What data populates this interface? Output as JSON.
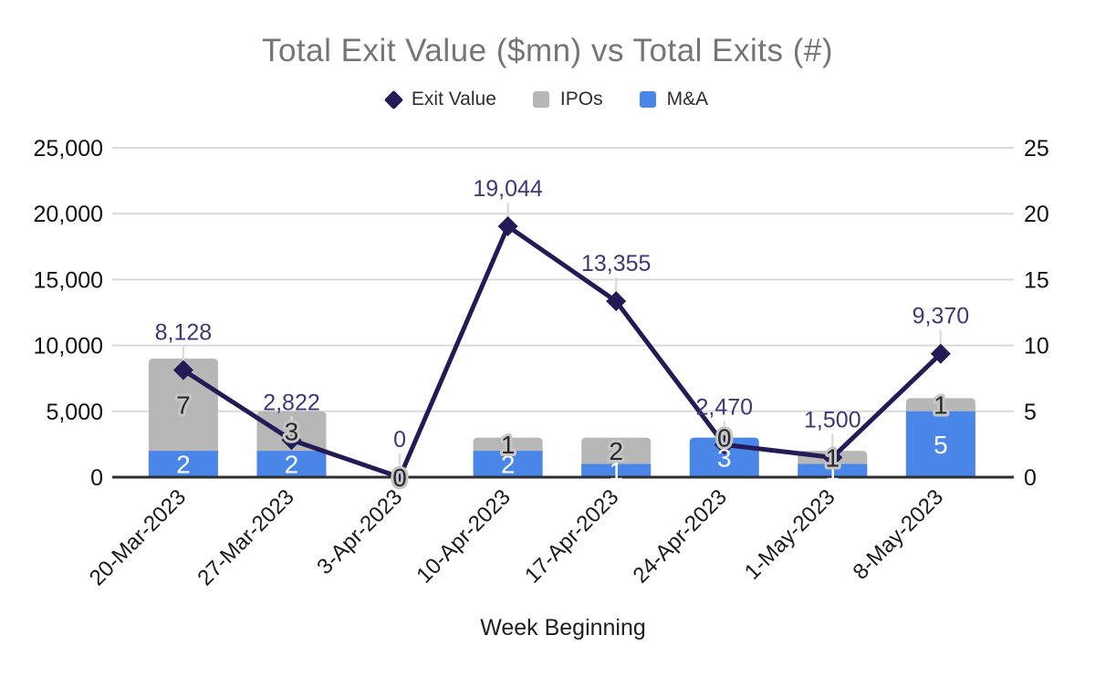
{
  "title": "Total Exit Value ($mn) vs Total Exits (#)",
  "legend": [
    {
      "label": "Exit Value",
      "marker": "diamond",
      "color": "#241A56"
    },
    {
      "label": "IPOs",
      "marker": "square",
      "color": "#B7B7B7"
    },
    {
      "label": "M&A",
      "marker": "square",
      "color": "#4A86E8"
    }
  ],
  "chart_data": {
    "type": "combo",
    "title": "Total Exit Value ($mn) vs Total Exits (#)",
    "xlabel": "Week Beginning",
    "categories": [
      "20-Mar-2023",
      "27-Mar-2023",
      "3-Apr-2023",
      "10-Apr-2023",
      "17-Apr-2023",
      "24-Apr-2023",
      "1-May-2023",
      "8-May-2023"
    ],
    "series": [
      {
        "name": "Exit Value",
        "type": "line",
        "axis": "left",
        "color": "#241A56",
        "label_color": "#3E3878",
        "values": [
          8128,
          2822,
          0,
          19044,
          13355,
          2470,
          1500,
          9370
        ],
        "labels": [
          "8,128",
          "2,822",
          "0",
          "19,044",
          "13,355",
          "2,470",
          "1,500",
          "9,370"
        ]
      },
      {
        "name": "IPOs",
        "type": "bar",
        "axis": "right",
        "color": "#B7B7B7",
        "label_color": "#2B2B2B",
        "values": [
          7,
          3,
          0,
          1,
          2,
          0,
          1,
          1
        ]
      },
      {
        "name": "M&A",
        "type": "bar",
        "axis": "right",
        "color": "#4A86E8",
        "label_color": "#FFFFFF",
        "values": [
          2,
          2,
          0,
          2,
          1,
          3,
          1,
          5
        ]
      }
    ],
    "stacked": true,
    "legend_position": "top",
    "grid": true,
    "left_axis": {
      "min": 0,
      "max": 25000,
      "ticks": [
        "0",
        "5,000",
        "10,000",
        "15,000",
        "20,000",
        "25,000"
      ]
    },
    "right_axis": {
      "min": 0,
      "max": 25,
      "ticks": [
        "0",
        "5",
        "10",
        "15",
        "20",
        "25"
      ]
    },
    "colors": {
      "grid": "#D9D9D9",
      "axis_line": "#2F2F2F",
      "leader": "#DCDCDC",
      "halo": "#C6C6C6",
      "tick_text": "#111111",
      "title_text": "#757575",
      "background": "#FFFFFF"
    }
  }
}
